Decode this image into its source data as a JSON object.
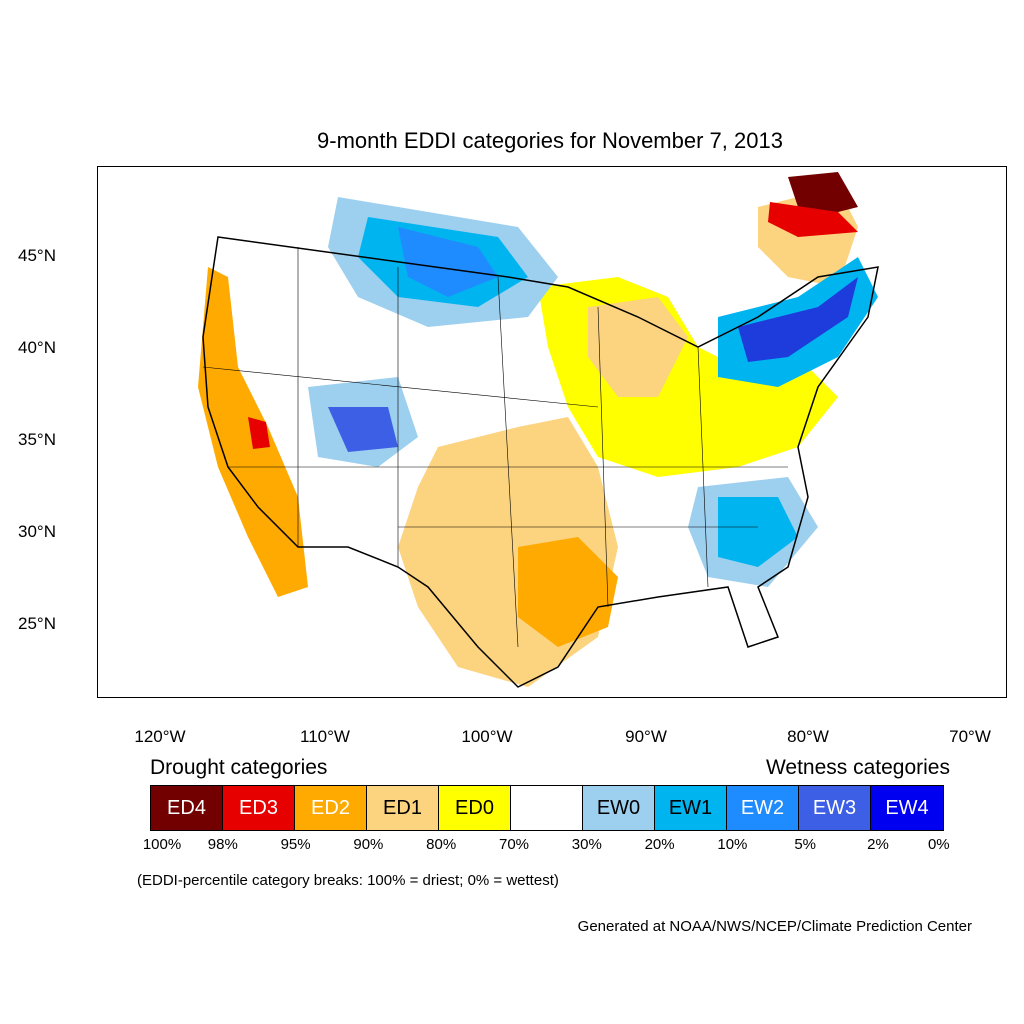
{
  "title": "9-month EDDI categories for November 7, 2013",
  "lat_labels": [
    "45°N",
    "40°N",
    "35°N",
    "30°N",
    "25°N"
  ],
  "lon_labels": [
    "120°W",
    "110°W",
    "100°W",
    "90°W",
    "80°W",
    "70°W"
  ],
  "legend": {
    "drought_heading": "Drought categories",
    "wetness_heading": "Wetness categories",
    "categories": [
      {
        "label": "ED4",
        "color": "#730000",
        "text_color": "#ffffff"
      },
      {
        "label": "ED3",
        "color": "#e60000",
        "text_color": "#ffffff"
      },
      {
        "label": "ED2",
        "color": "#ffaa00",
        "text_color": "#ffffff"
      },
      {
        "label": "ED1",
        "color": "#fcd37f",
        "text_color": "#000000"
      },
      {
        "label": "ED0",
        "color": "#ffff00",
        "text_color": "#000000"
      },
      {
        "label": "",
        "color": "#ffffff",
        "text_color": "#000000"
      },
      {
        "label": "EW0",
        "color": "#9dcfef",
        "text_color": "#000000"
      },
      {
        "label": "EW1",
        "color": "#00b4f0",
        "text_color": "#000000"
      },
      {
        "label": "EW2",
        "color": "#1e8cff",
        "text_color": "#ffffff"
      },
      {
        "label": "EW3",
        "color": "#3c5fe6",
        "text_color": "#ffffff"
      },
      {
        "label": "EW4",
        "color": "#0000f0",
        "text_color": "#ffffff"
      }
    ],
    "breaks": [
      "100%",
      "98%",
      "95%",
      "90%",
      "80%",
      "70%",
      "30%",
      "20%",
      "10%",
      "5%",
      "2%",
      "0%"
    ]
  },
  "note": "(EDDI-percentile category breaks: 100% = driest; 0% = wettest)",
  "credit": "Generated at NOAA/NWS/NCEP/Climate Prediction Center"
}
